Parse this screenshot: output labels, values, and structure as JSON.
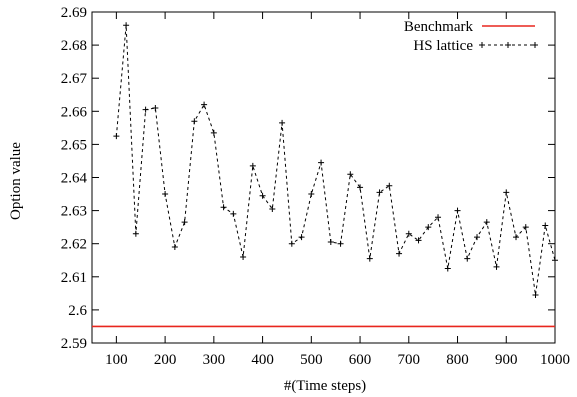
{
  "chart_data": {
    "type": "line",
    "title": "",
    "xlabel": "#(Time steps)",
    "ylabel": "Option value",
    "xlim": [
      50,
      1000
    ],
    "ylim": [
      2.59,
      2.69
    ],
    "xticks": [
      100,
      200,
      300,
      400,
      500,
      600,
      700,
      800,
      900,
      1000
    ],
    "yticks": [
      2.59,
      2.6,
      2.61,
      2.62,
      2.63,
      2.64,
      2.65,
      2.66,
      2.67,
      2.68,
      2.69
    ],
    "xtick_labels": [
      "100",
      "200",
      "300",
      "400",
      "500",
      "600",
      "700",
      "800",
      "900",
      "1000"
    ],
    "ytick_labels": [
      "2.59",
      "2.6",
      "2.61",
      "2.62",
      "2.63",
      "2.64",
      "2.65",
      "2.66",
      "2.67",
      "2.68",
      "2.69"
    ],
    "legend_position": "top-right",
    "grid": false,
    "benchmark": {
      "name": "Benchmark",
      "value": 2.595,
      "color": "#e8261e"
    },
    "series": [
      {
        "name": "HS lattice",
        "color": "#000000",
        "style": "dashed",
        "marker": "plus",
        "x": [
          100,
          120,
          140,
          160,
          180,
          200,
          220,
          240,
          260,
          280,
          300,
          320,
          340,
          360,
          380,
          400,
          420,
          440,
          460,
          480,
          500,
          520,
          540,
          560,
          580,
          600,
          620,
          640,
          660,
          680,
          700,
          720,
          740,
          760,
          780,
          800,
          820,
          840,
          860,
          880,
          900,
          920,
          940,
          960,
          980,
          1000
        ],
        "y": [
          2.6525,
          2.686,
          2.623,
          2.6605,
          2.661,
          2.635,
          2.619,
          2.6265,
          2.657,
          2.662,
          2.6535,
          2.631,
          2.629,
          2.616,
          2.6435,
          2.6345,
          2.6305,
          2.6565,
          2.62,
          2.622,
          2.635,
          2.6445,
          2.6205,
          2.62,
          2.641,
          2.637,
          2.6155,
          2.6355,
          2.6375,
          2.617,
          2.623,
          2.621,
          2.625,
          2.628,
          2.6125,
          2.63,
          2.6155,
          2.622,
          2.6265,
          2.613,
          2.6355,
          2.622,
          2.625,
          2.6045,
          2.6255,
          2.615
        ]
      }
    ]
  }
}
